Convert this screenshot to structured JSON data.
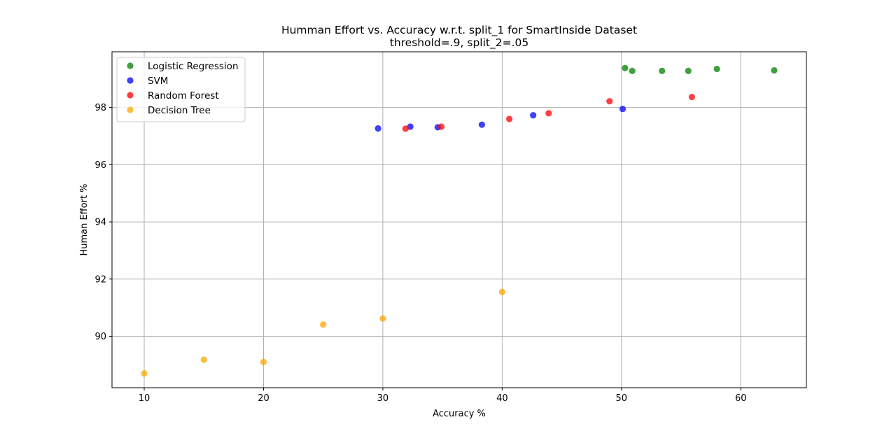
{
  "chart_data": {
    "type": "scatter",
    "title": "Humman Effort vs. Accuracy w.r.t. split_1 for SmartInside Dataset",
    "subtitle": "threshold=.9, split_2=.05",
    "xlabel": "Accuracy %",
    "ylabel": "Human Effort %",
    "xlim": [
      7.3,
      65.5
    ],
    "ylim": [
      88.2,
      99.95
    ],
    "xticks": [
      10,
      20,
      30,
      40,
      50,
      60
    ],
    "yticks": [
      90,
      92,
      94,
      96,
      98
    ],
    "grid": true,
    "legend_position": "top-left",
    "series": [
      {
        "name": "Logistic Regression",
        "color": "#008000",
        "points": [
          [
            50.3,
            99.38
          ],
          [
            50.9,
            99.28
          ],
          [
            53.4,
            99.28
          ],
          [
            55.6,
            99.28
          ],
          [
            58.0,
            99.35
          ],
          [
            62.8,
            99.3
          ]
        ]
      },
      {
        "name": "SVM",
        "color": "#0000ff",
        "points": [
          [
            29.6,
            97.27
          ],
          [
            32.3,
            97.33
          ],
          [
            34.6,
            97.31
          ],
          [
            38.3,
            97.4
          ],
          [
            42.6,
            97.73
          ],
          [
            50.1,
            97.95
          ]
        ]
      },
      {
        "name": "Random Forest",
        "color": "#ff0000",
        "points": [
          [
            31.9,
            97.26
          ],
          [
            34.9,
            97.33
          ],
          [
            40.6,
            97.6
          ],
          [
            43.9,
            97.8
          ],
          [
            49.0,
            98.22
          ],
          [
            55.9,
            98.37
          ]
        ]
      },
      {
        "name": "Decision Tree",
        "color": "#ffa500",
        "points": [
          [
            10.0,
            88.7
          ],
          [
            15.0,
            89.18
          ],
          [
            20.0,
            89.1
          ],
          [
            25.0,
            90.41
          ],
          [
            30.0,
            90.62
          ],
          [
            40.0,
            91.55
          ]
        ]
      }
    ]
  }
}
